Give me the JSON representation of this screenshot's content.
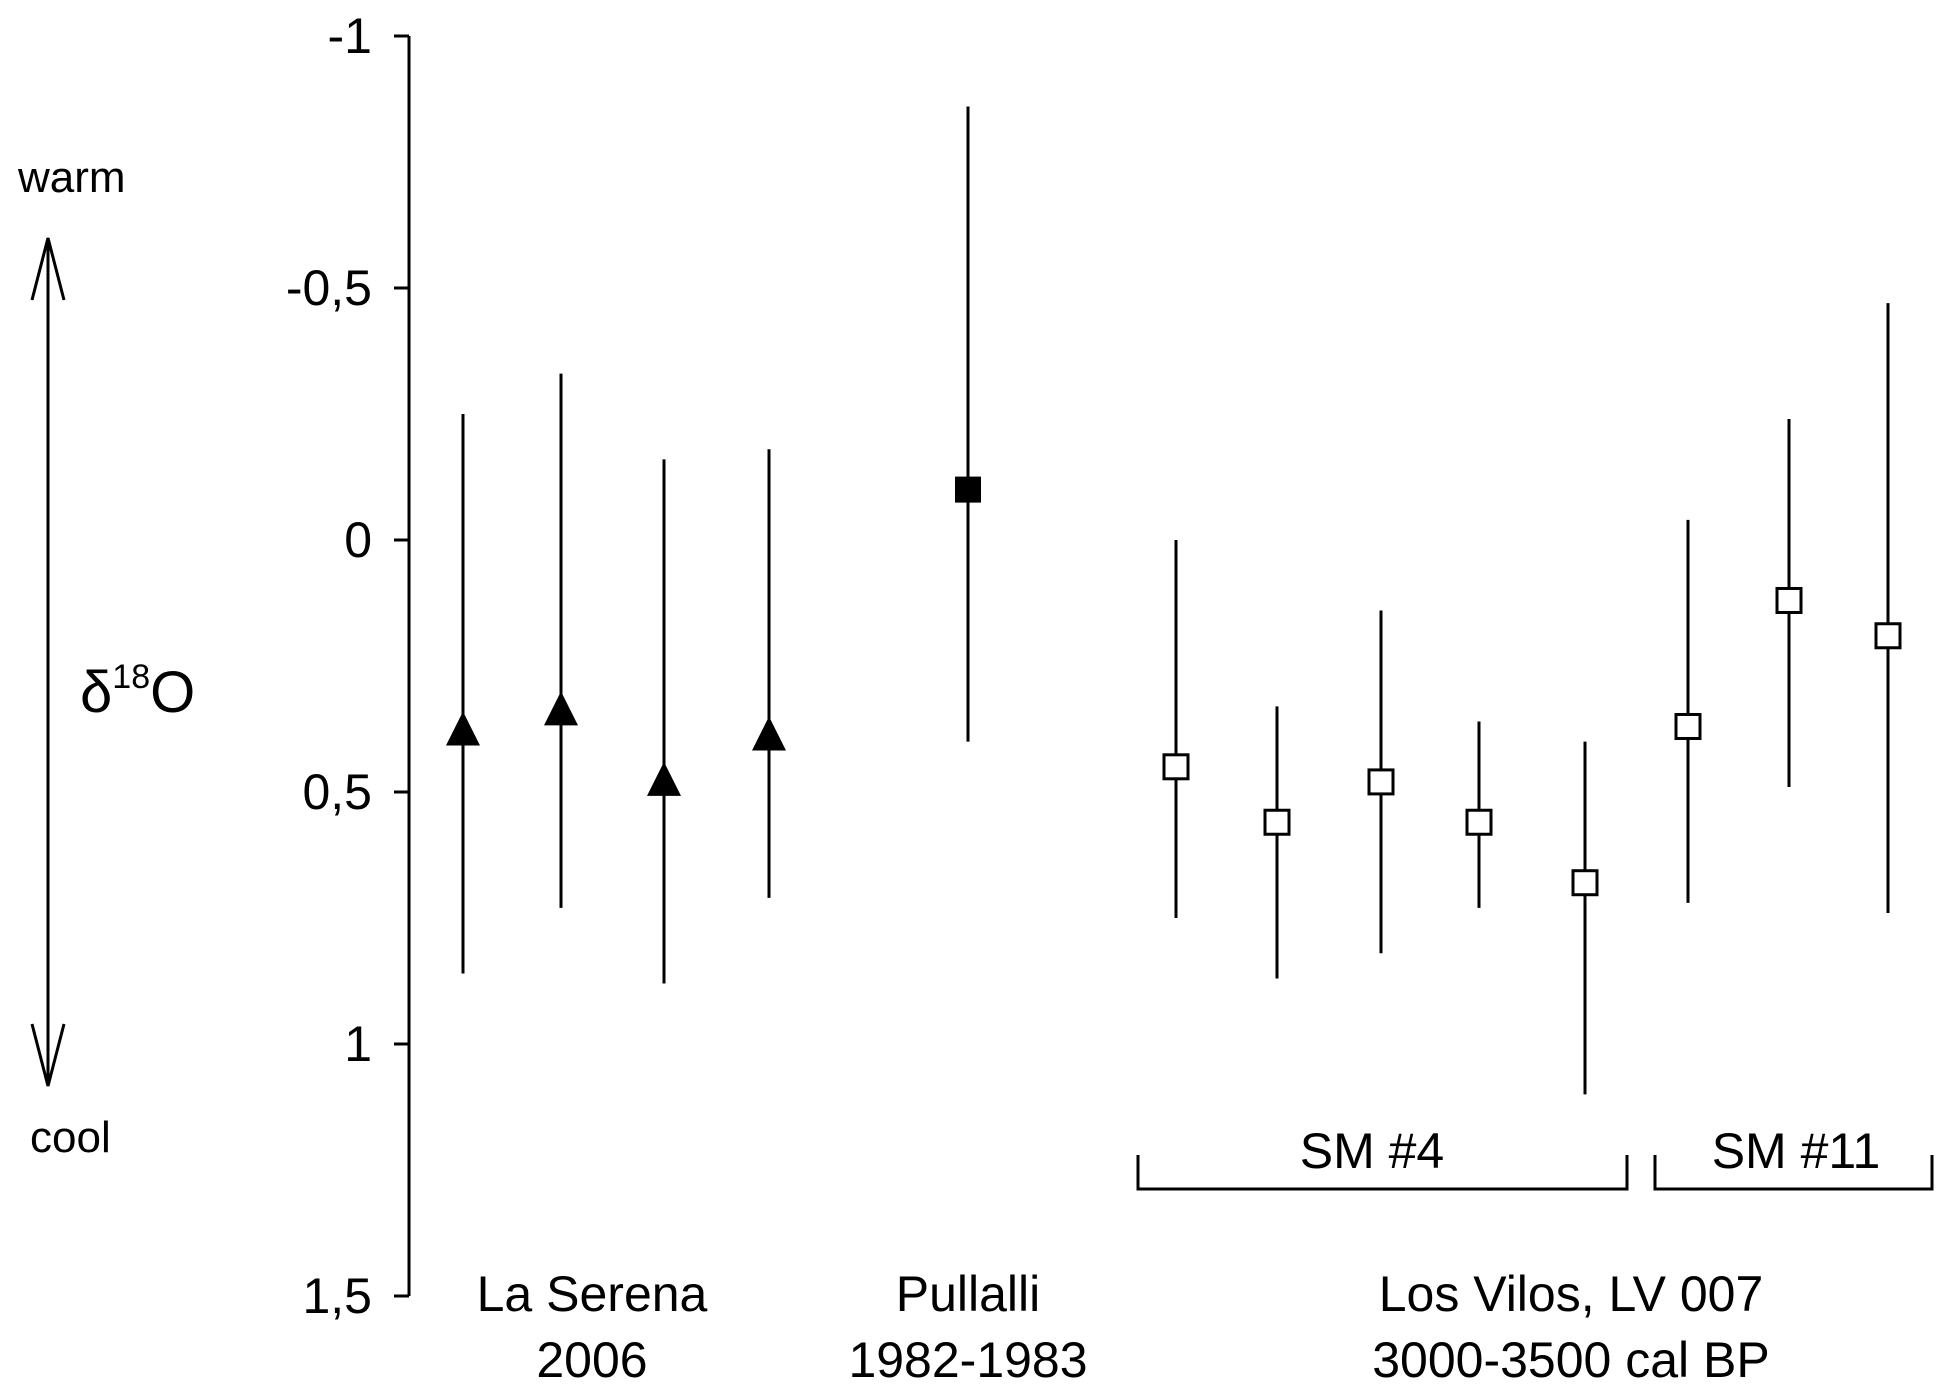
{
  "chart_data": {
    "type": "scatter",
    "ylabel": "δ18O",
    "ylabel_base": "δ",
    "ylabel_sup": "18",
    "ylabel_tail": "O",
    "y_inverted": true,
    "ylim": [
      -1,
      1.5
    ],
    "yticks": [
      -1,
      -0.5,
      0,
      0.5,
      1,
      1.5
    ],
    "ytick_labels": [
      "-1",
      "-0,5",
      "0",
      "0,5",
      "1",
      "1,5"
    ],
    "grid": false,
    "legend": "none",
    "indicator": {
      "top_label": "warm",
      "bottom_label": "cool"
    },
    "groups": [
      {
        "line1": "La Serena",
        "line2": "2006",
        "marker": "triangle-filled"
      },
      {
        "line1": "Pullalli",
        "line2": "1982-1983",
        "marker": "square-filled"
      },
      {
        "line1": "Los Vilos, LV 007",
        "line2": "3000-3500 cal BP",
        "marker": "square-open"
      }
    ],
    "brackets": [
      {
        "label": "SM #4"
      },
      {
        "label": "SM #11"
      }
    ],
    "series": [
      {
        "group": 0,
        "marker": "triangle-filled",
        "points": [
          {
            "y": 0.38,
            "low": -0.25,
            "high": 0.86
          },
          {
            "y": 0.34,
            "low": -0.33,
            "high": 0.73
          },
          {
            "y": 0.48,
            "low": -0.16,
            "high": 0.88
          },
          {
            "y": 0.39,
            "low": -0.18,
            "high": 0.71
          }
        ]
      },
      {
        "group": 1,
        "marker": "square-filled",
        "points": [
          {
            "y": -0.1,
            "low": -0.86,
            "high": 0.4
          }
        ]
      },
      {
        "group": 2,
        "bracket": 0,
        "marker": "square-open",
        "points": [
          {
            "y": 0.45,
            "low": 0.0,
            "high": 0.75
          },
          {
            "y": 0.56,
            "low": 0.33,
            "high": 0.87
          },
          {
            "y": 0.48,
            "low": 0.14,
            "high": 0.82
          },
          {
            "y": 0.56,
            "low": 0.36,
            "high": 0.73
          },
          {
            "y": 0.68,
            "low": 0.4,
            "high": 1.1
          }
        ]
      },
      {
        "group": 2,
        "bracket": 1,
        "marker": "square-open",
        "points": [
          {
            "y": 0.37,
            "low": -0.04,
            "high": 0.72
          },
          {
            "y": 0.12,
            "low": -0.24,
            "high": 0.49
          },
          {
            "y": 0.19,
            "low": -0.47,
            "high": 0.74
          }
        ]
      }
    ]
  }
}
